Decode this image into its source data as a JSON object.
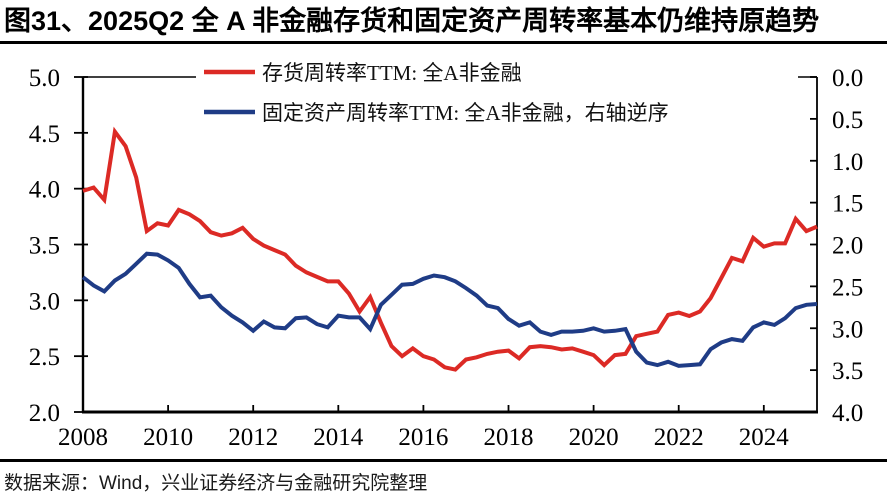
{
  "title": "图31、2025Q2 全 A 非金融存货和固定资产周转率基本仍维持原趋势",
  "footer": "数据来源：Wind，兴业证券经济与金融研究院整理",
  "colors": {
    "red": "#DC2A25",
    "blue": "#1F3C86",
    "axis": "#000000",
    "background": "#FFFFFF"
  },
  "chart_data": {
    "type": "line",
    "x_unit": "quarter",
    "x_range": [
      "2008Q1",
      "2025Q2"
    ],
    "x_tick_labels": [
      "2008",
      "2010",
      "2012",
      "2014",
      "2016",
      "2018",
      "2020",
      "2022",
      "2024"
    ],
    "left_axis": {
      "min": 2.0,
      "max": 5.0,
      "tick_labels": [
        "5.0",
        "4.5",
        "4.0",
        "3.5",
        "3.0",
        "2.5",
        "2.0"
      ]
    },
    "right_axis": {
      "min": 0.0,
      "max": 4.0,
      "reversed": true,
      "tick_labels": [
        "0.0",
        "0.5",
        "1.0",
        "1.5",
        "2.0",
        "2.5",
        "3.0",
        "3.5",
        "4.0"
      ]
    },
    "grid": false,
    "legend_position": "top-inside",
    "series": [
      {
        "name": "存货周转率TTM: 全A非金融",
        "axis": "left",
        "color": "#DC2A25",
        "values": [
          3.98,
          4.01,
          3.9,
          4.51,
          4.38,
          4.1,
          3.62,
          3.69,
          3.67,
          3.81,
          3.77,
          3.71,
          3.61,
          3.58,
          3.6,
          3.65,
          3.55,
          3.49,
          3.45,
          3.41,
          3.31,
          3.25,
          3.21,
          3.17,
          3.17,
          3.06,
          2.9,
          3.03,
          2.8,
          2.59,
          2.5,
          2.57,
          2.5,
          2.47,
          2.4,
          2.38,
          2.47,
          2.49,
          2.52,
          2.54,
          2.55,
          2.48,
          2.58,
          2.59,
          2.58,
          2.56,
          2.57,
          2.54,
          2.51,
          2.42,
          2.51,
          2.52,
          2.68,
          2.7,
          2.72,
          2.87,
          2.89,
          2.86,
          2.9,
          3.02,
          3.2,
          3.38,
          3.35,
          3.56,
          3.48,
          3.51,
          3.51,
          3.73,
          3.62,
          3.66
        ]
      },
      {
        "name": "固定资产周转率TTM: 全A非金融，右轴逆序",
        "axis": "right",
        "color": "#1F3C86",
        "values": [
          2.39,
          2.49,
          2.56,
          2.43,
          2.35,
          2.23,
          2.11,
          2.12,
          2.19,
          2.28,
          2.47,
          2.63,
          2.61,
          2.75,
          2.85,
          2.93,
          3.03,
          2.92,
          2.99,
          3.0,
          2.88,
          2.87,
          2.95,
          2.99,
          2.85,
          2.87,
          2.87,
          3.01,
          2.72,
          2.6,
          2.48,
          2.47,
          2.41,
          2.37,
          2.39,
          2.44,
          2.52,
          2.61,
          2.73,
          2.76,
          2.89,
          2.97,
          2.93,
          3.04,
          3.08,
          3.04,
          3.04,
          3.03,
          3.0,
          3.04,
          3.03,
          3.01,
          3.28,
          3.41,
          3.44,
          3.4,
          3.45,
          3.44,
          3.43,
          3.25,
          3.17,
          3.13,
          3.15,
          2.99,
          2.93,
          2.96,
          2.88,
          2.76,
          2.72,
          2.71
        ]
      }
    ]
  }
}
